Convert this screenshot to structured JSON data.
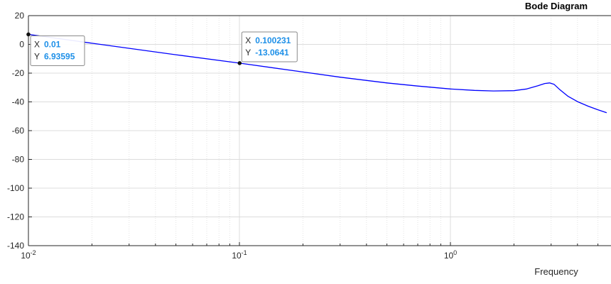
{
  "chart_data": {
    "type": "line",
    "title": "Bode Diagram",
    "xlabel": "Frequency",
    "ylabel": "",
    "x_scale": "log",
    "xlim": [
      0.01,
      5.5
    ],
    "ylim": [
      -140,
      20
    ],
    "y_ticks": [
      20,
      0,
      -20,
      -40,
      -60,
      -80,
      -100,
      -120,
      -140
    ],
    "x_ticks": [
      {
        "value": 0.01,
        "base": "10",
        "exp": "-2"
      },
      {
        "value": 0.1,
        "base": "10",
        "exp": "-1"
      },
      {
        "value": 1,
        "base": "10",
        "exp": "0"
      }
    ],
    "grid": true,
    "line_color": "#0000ff",
    "series": [
      {
        "x": [
          0.01,
          0.02,
          0.05,
          0.1,
          0.2,
          0.3,
          0.5,
          0.7,
          1.0,
          1.3,
          1.6,
          2.0,
          2.3,
          2.6,
          2.8,
          2.95,
          3.1,
          3.3,
          3.6,
          4.0,
          4.5,
          5.0,
          5.5
        ],
        "y": [
          6.94,
          0.8,
          -7.2,
          -13.06,
          -19.2,
          -22.8,
          -26.8,
          -29.0,
          -31.0,
          -32.0,
          -32.4,
          -32.2,
          -31.0,
          -28.8,
          -27.2,
          -26.8,
          -27.8,
          -31.5,
          -36.0,
          -39.8,
          -43.0,
          -45.5,
          -47.5
        ]
      }
    ],
    "datatips": [
      {
        "x_key": "X",
        "x_value": "0.01",
        "y_key": "Y",
        "y_value": "6.93595",
        "x": 0.01,
        "y": 6.93595
      },
      {
        "x_key": "X",
        "x_value": "0.100231",
        "y_key": "Y",
        "y_value": "-13.0641",
        "x": 0.100231,
        "y": -13.0641
      }
    ],
    "colors": {
      "axis": "#262626",
      "grid_major": "#dcdcdc",
      "datatip_value": "#1e90e8"
    }
  }
}
